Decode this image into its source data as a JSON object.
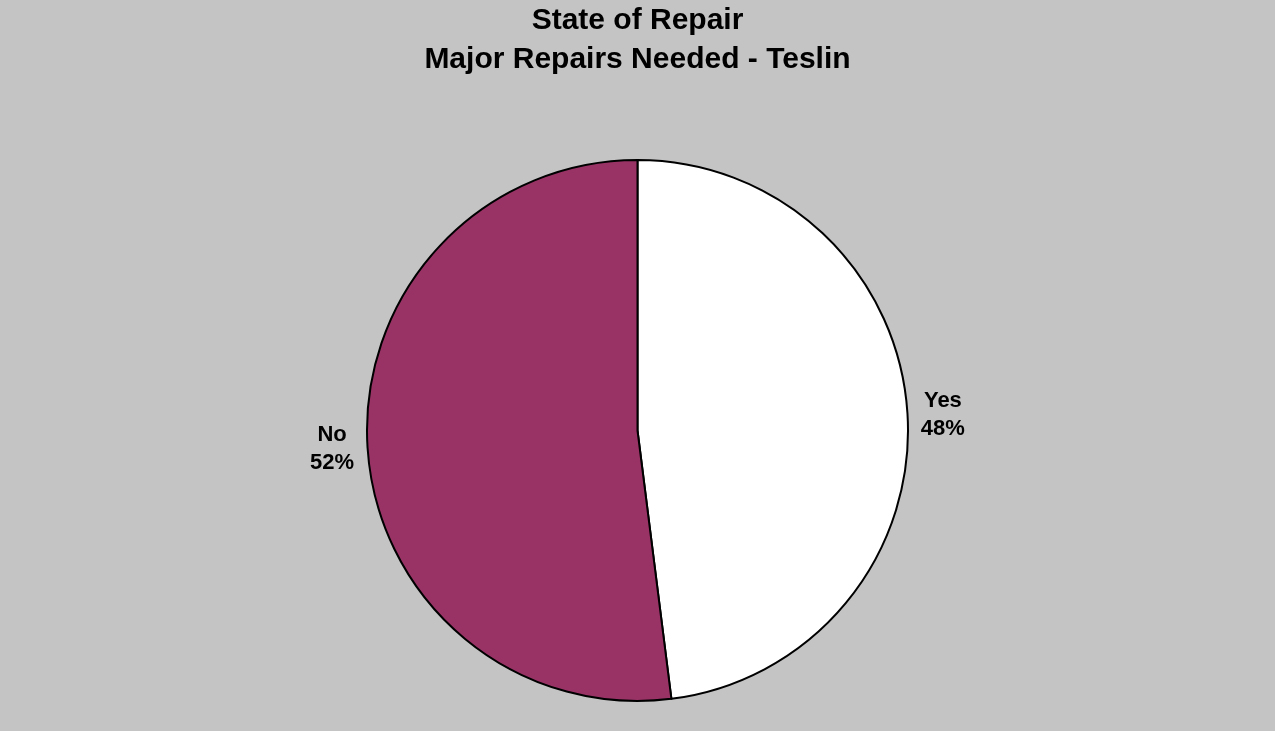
{
  "chart_data": {
    "type": "pie",
    "title": "State of Repair\nMajor Repairs Needed - Teslin",
    "categories": [
      "Yes",
      "No"
    ],
    "values": [
      48,
      52
    ],
    "value_labels": [
      "48%",
      "52%"
    ],
    "colors": [
      "#ffffff",
      "#993366"
    ],
    "legend": false
  }
}
